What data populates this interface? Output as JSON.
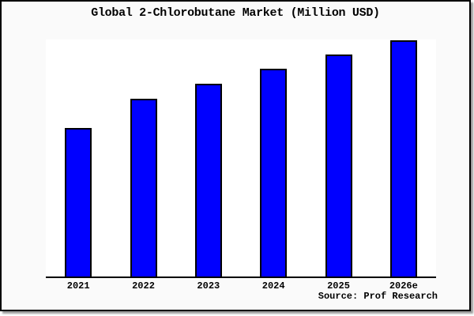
{
  "chart_data": {
    "type": "bar",
    "title": "Global 2-Chlorobutane Market (Million USD)",
    "categories": [
      "2021",
      "2022",
      "2023",
      "2024",
      "2025",
      "2026e"
    ],
    "values": [
      188,
      225,
      244,
      263,
      281,
      299
    ],
    "values_note": "relative bar heights in px; no y-axis scale shown in chart",
    "xlabel": "",
    "ylabel": "",
    "ylim": [
      0,
      300
    ],
    "grid": false,
    "legend": false,
    "bar_color": "#0000ff",
    "bar_border_color": "#000000"
  },
  "source": {
    "text": "Source: Prof Research"
  },
  "colors": {
    "page_background": "#fafafa",
    "plot_background": "#ffffff",
    "frame_border": "#000000",
    "shadow": "#9c9c9c"
  }
}
